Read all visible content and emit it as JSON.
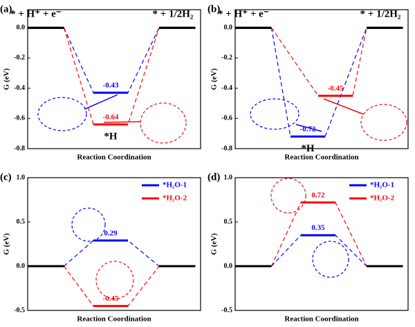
{
  "chart_data": [
    {
      "type": "step",
      "panel_label": "(a)",
      "ylabel": "G (eV)",
      "xlabel": "Reaction Coordination",
      "categories": [
        "* + H⁺ + e⁻",
        "*H",
        "* + 1/2H₂"
      ],
      "level_color": "#000000",
      "series": [
        {
          "color": "#0000ff",
          "values": [
            0,
            -0.43,
            0
          ]
        },
        {
          "color": "#ff0000",
          "values": [
            0,
            -0.64,
            0
          ]
        }
      ],
      "ylim": [
        -0.8,
        0.12
      ],
      "yticks": [
        {
          "value": 0,
          "label": "0.0"
        },
        -0.2,
        -0.4,
        -0.6,
        -0.8
      ]
    },
    {
      "type": "step",
      "panel_label": "(b)",
      "ylabel": "G (eV)",
      "xlabel": "Reaction Coordination",
      "categories": [
        "* + H⁺ + e⁻",
        "*H",
        "* + 1/2H₂"
      ],
      "level_color": "#000000",
      "series": [
        {
          "color": "#0000ff",
          "values": [
            0,
            -0.72,
            0
          ]
        },
        {
          "color": "#ff0000",
          "values": [
            0,
            -0.45,
            0
          ]
        }
      ],
      "ylim": [
        -0.8,
        0.12
      ],
      "yticks": [
        {
          "value": 0,
          "label": "0.0"
        },
        -0.2,
        -0.4,
        -0.6,
        -0.8
      ]
    },
    {
      "type": "step",
      "panel_label": "(c)",
      "ylabel": "G (eV)",
      "xlabel": "Reaction Coordination",
      "categories": [
        null,
        null,
        null
      ],
      "level_color": "#000000",
      "legend": "upper right",
      "series": [
        {
          "name": "*H₂O-1",
          "color": "#0000ff",
          "values": [
            0,
            0.29,
            0
          ]
        },
        {
          "name": "*H₂O-2",
          "color": "#ff0000",
          "values": [
            0,
            -0.45,
            0
          ]
        }
      ],
      "ylim": [
        -0.5,
        1.0
      ],
      "yticks": [
        {
          "value": 1,
          "label": "1.0"
        },
        0.5,
        {
          "value": 0,
          "label": "0.0"
        },
        -0.5
      ]
    },
    {
      "type": "step",
      "panel_label": "(d)",
      "ylabel": "G (eV)",
      "xlabel": "Reaction Coordination",
      "categories": [
        null,
        null,
        null
      ],
      "level_color": "#000000",
      "legend": "upper right",
      "series": [
        {
          "name": "*H₂O-1",
          "color": "#0000ff",
          "values": [
            0,
            0.35,
            0
          ]
        },
        {
          "name": "*H₂O-2",
          "color": "#ff0000",
          "values": [
            0,
            0.72,
            0
          ]
        }
      ],
      "ylim": [
        -0.5,
        1.0
      ],
      "yticks": [
        {
          "value": 1,
          "label": "1.0"
        },
        0.5,
        {
          "value": 0,
          "label": "0.0"
        },
        -0.5
      ]
    }
  ]
}
